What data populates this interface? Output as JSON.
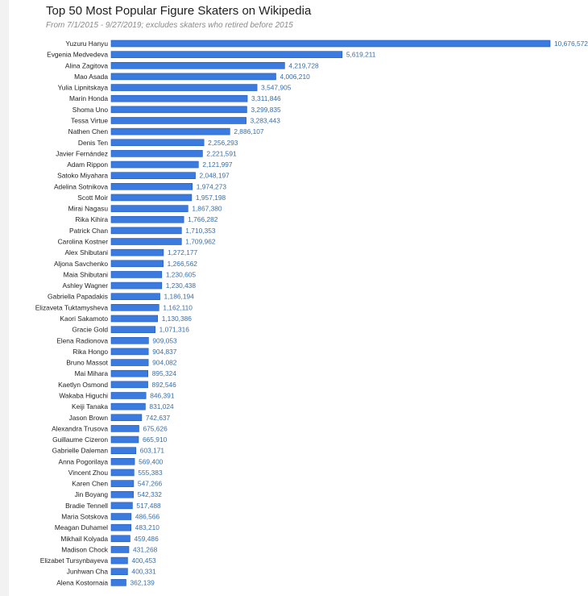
{
  "chart_data": {
    "type": "bar",
    "orientation": "horizontal",
    "title": "Top 50 Most Popular Figure Skaters on Wikipedia",
    "subtitle": "From 7/1/2015 - 9/27/2019; excludes skaters who retired before 2015",
    "bar_color": "#3b7be0",
    "bar_border_color": "#1f56b0",
    "value_label_color": "#3a6ea5",
    "categories": [
      "Yuzuru Hanyu",
      "Evgenia Medvedeva",
      "Alina Zagitova",
      "Mao Asada",
      "Yulia Lipnitskaya",
      "Marin Honda",
      "Shoma Uno",
      "Tessa Virtue",
      "Nathen Chen",
      "Denis Ten",
      "Javier Fernández",
      "Adam Rippon",
      "Satoko Miyahara",
      "Adelina Sotnikova",
      "Scott Moir",
      "Mirai Nagasu",
      "Rika Kihira",
      "Patrick Chan",
      "Carolina Kostner",
      "Alex Shibutani",
      "Aljona Savchenko",
      "Maia Shibutani",
      "Ashley Wagner",
      "Gabriella Papadakis",
      "Elizaveta Tuktamysheva",
      "Kaori Sakamoto",
      "Gracie Gold",
      "Elena Radionova",
      "Rika Hongo",
      "Bruno Massot",
      "Mai Mihara",
      "Kaetlyn Osmond",
      "Wakaba Higuchi",
      "Keiji Tanaka",
      "Jason Brown",
      "Alexandra Trusova",
      "Guillaume Cizeron",
      "Gabrielle Daleman",
      "Anna Pogorilaya",
      "Vincent Zhou",
      "Karen Chen",
      "Jin Boyang",
      "Bradie Tennell",
      "Maria Sotskova",
      "Meagan Duhamel",
      "Mikhail Kolyada",
      "Madison Chock",
      "Elizabet Tursynbayeva",
      "Junhwan Cha",
      "Alena Kostornaia"
    ],
    "values": [
      10676572,
      5619211,
      4219728,
      4006210,
      3547905,
      3311846,
      3299835,
      3283443,
      2886107,
      2256293,
      2221591,
      2121997,
      2048197,
      1974273,
      1957198,
      1867380,
      1766282,
      1710353,
      1709962,
      1272177,
      1266562,
      1230605,
      1230438,
      1186194,
      1162110,
      1130386,
      1071316,
      909053,
      904837,
      904082,
      895324,
      892546,
      846391,
      831024,
      742637,
      675626,
      665910,
      603171,
      569400,
      555383,
      547266,
      542332,
      517488,
      486566,
      483210,
      459486,
      431268,
      400453,
      400331,
      362139
    ],
    "value_labels": [
      "10,676,572",
      "5,619,211",
      "4,219,728",
      "4,006,210",
      "3,547,905",
      "3,311,846",
      "3,299,835",
      "3,283,443",
      "2,886,107",
      "2,256,293",
      "2,221,591",
      "2,121,997",
      "2,048,197",
      "1,974,273",
      "1,957,198",
      "1,867,380",
      "1,766,282",
      "1,710,353",
      "1,709,962",
      "1,272,177",
      "1,266,562",
      "1,230,605",
      "1,230,438",
      "1,186,194",
      "1,162,110",
      "1,130,386",
      "1,071,316",
      "909,053",
      "904,837",
      "904,082",
      "895,324",
      "892,546",
      "846,391",
      "831,024",
      "742,637",
      "675,626",
      "665,910",
      "603,171",
      "569,400",
      "555,383",
      "547,266",
      "542,332",
      "517,488",
      "486,566",
      "483,210",
      "459,486",
      "431,268",
      "400,453",
      "400,331",
      "362,139"
    ],
    "grid": false,
    "legend": "none"
  }
}
